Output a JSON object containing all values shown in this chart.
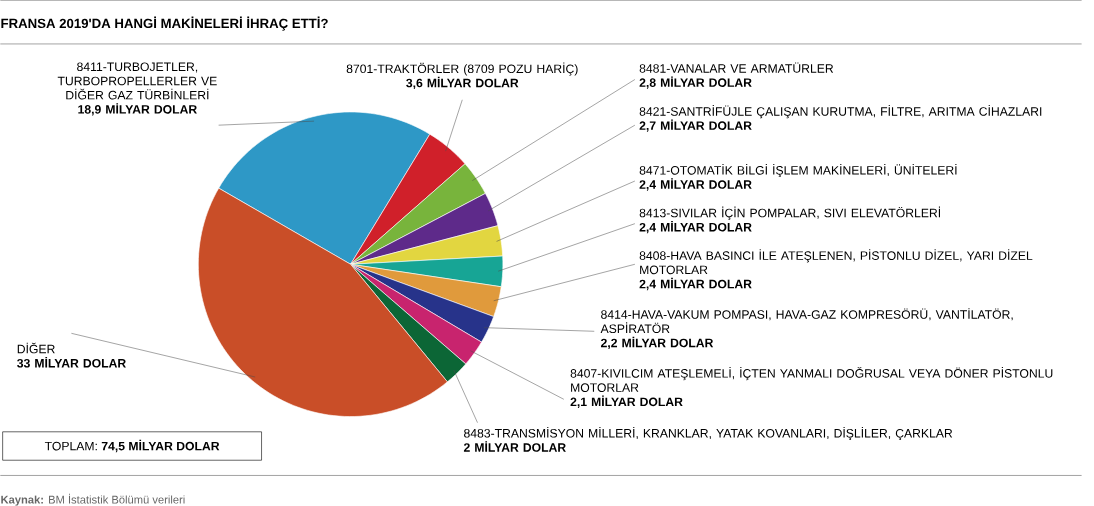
{
  "chart_data": {
    "type": "pie",
    "title": "FRANSA 2019'DA HANGİ MAKİNELERİ İHRAÇ ETTİ?",
    "categories": [
      "8411-TURBOJETLER, TURBOPROPELLERLER VE DİĞER GAZ TÜRBİNLERİ",
      "8701-TRAKTÖRLER (8709 POZU HARİÇ)",
      "8481-VANALAR VE ARMATÜRLER",
      "8421-SANTRİFÜJLE ÇALIŞAN KURUTMA, FİLTRE, ARITMA CİHAZLARI",
      "8471-OTOMATİK BİLGİ İŞLEM MAKİNELERİ, ÜNİTELERİ",
      "8413-SIVILAR İÇİN POMPALAR, SIVI ELEVATÖRLERİ",
      "8408-HAVA BASINCI İLE ATEŞLENEN, PİSTONLU DİZEL, YARI DİZEL MOTORLAR",
      "8414-HAVA-VAKUM POMPASI, HAVA-GAZ KOMPRESÖRÜ, VANTİLATÖR, ASPİRATÖR",
      "8407-KIVILCIM ATEŞLEMELİ, İÇTEN YANMALI DOĞRUSAL VEYA DÖNER PİSTONLU MOTORLAR",
      "8483-TRANSMİSYON MİLLERİ, KRANKLAR, YATAK KOVANLARI, DİŞLİLER, ÇARKLAR",
      "DİĞER"
    ],
    "values": [
      18.9,
      3.6,
      2.8,
      2.7,
      2.4,
      2.4,
      2.4,
      2.2,
      2.1,
      2,
      33
    ],
    "value_labels": [
      "18,9 MİLYAR DOLAR",
      "3,6 MİLYAR DOLAR",
      "2,8 MİLYAR DOLAR",
      "2,7 MİLYAR DOLAR",
      "2,4 MİLYAR DOLAR",
      "2,4 MİLYAR DOLAR",
      "2,4 MİLYAR DOLAR",
      "2,2 MİLYAR DOLAR",
      "2,1 MİLYAR DOLAR",
      "2 MİLYAR DOLAR",
      "33 MİLYAR DOLAR"
    ],
    "colors": [
      "#2e98c6",
      "#d0202a",
      "#78b43c",
      "#5e2a8a",
      "#e2d640",
      "#17a595",
      "#e09a3c",
      "#27338a",
      "#c8246e",
      "#0c6636",
      "#c94e28"
    ],
    "annotations": [
      "TOPLAM: **74,5 MİLYAR DOLAR**",
      "**Kaynak:** BM İstatistik Bölümü verileri"
    ]
  }
}
